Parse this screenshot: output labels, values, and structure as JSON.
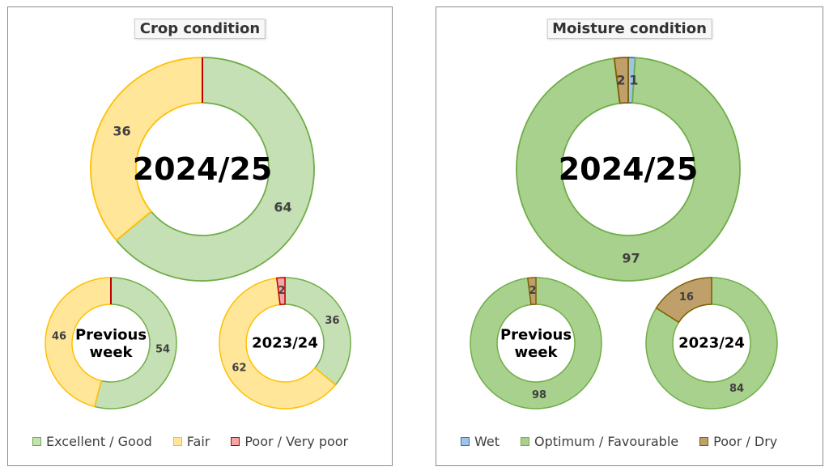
{
  "chart_data": [
    {
      "type": "donut",
      "title": "Crop condition",
      "legend": {
        "placement": "bottom",
        "entries": [
          {
            "name": "Excellent / Good",
            "fill": "#c5e0b4",
            "stroke": "#70ad47"
          },
          {
            "name": "Fair",
            "fill": "#ffe699",
            "stroke": "#ffc000"
          },
          {
            "name": "Poor / Very poor",
            "fill": "#f4a6a6",
            "stroke": "#c00000"
          }
        ]
      },
      "rings": [
        {
          "center_label": "2024/25",
          "values": [
            64,
            36,
            0
          ],
          "labels": [
            "64",
            "36",
            ""
          ]
        },
        {
          "center_label": "Previous week",
          "values": [
            54,
            46,
            0
          ],
          "labels": [
            "54",
            "46",
            ""
          ]
        },
        {
          "center_label": "2023/24",
          "values": [
            36,
            62,
            2
          ],
          "labels": [
            "36",
            "62",
            "2"
          ]
        }
      ]
    },
    {
      "type": "donut",
      "title": "Moisture condition",
      "legend": {
        "placement": "bottom",
        "entries": [
          {
            "name": "Wet",
            "fill": "#9dc3e6",
            "stroke": "#2e75b6"
          },
          {
            "name": "Optimum / Favourable",
            "fill": "#a9d18e",
            "stroke": "#70ad47"
          },
          {
            "name": "Poor / Dry",
            "fill": "#bf9f6a",
            "stroke": "#7f6000"
          }
        ]
      },
      "rings": [
        {
          "center_label": "2024/25",
          "values": [
            1,
            97,
            2
          ],
          "labels": [
            "1",
            "97",
            "2"
          ]
        },
        {
          "center_label": "Previous week",
          "values": [
            0,
            98,
            2
          ],
          "labels": [
            "",
            "98",
            "2"
          ]
        },
        {
          "center_label": "2023/24",
          "values": [
            0,
            84,
            16
          ],
          "labels": [
            "",
            "84",
            "16"
          ]
        }
      ]
    }
  ]
}
